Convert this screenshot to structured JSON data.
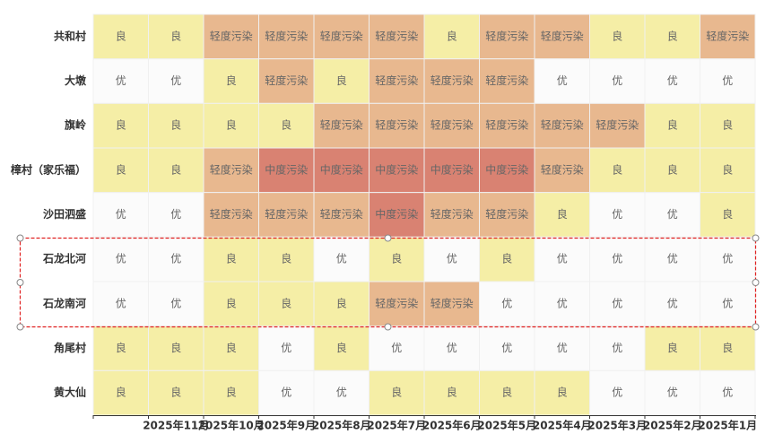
{
  "chart_data": {
    "type": "heatmap",
    "categories": [
      null,
      "2025年11月",
      "2025年10月",
      "2025年9月",
      "2025年8月",
      "2025年7月",
      "2025年6月",
      "2025年5月",
      "2025年4月",
      "2025年3月",
      "2025年2月",
      "2025年1月"
    ],
    "levels": [
      {
        "label": "优",
        "color": "#fbfbfb"
      },
      {
        "label": "良",
        "color": "#f5eea6"
      },
      {
        "label": "轻度污染",
        "color": "#e8b88f"
      },
      {
        "label": "中度污染",
        "color": "#d98272"
      }
    ],
    "series": [
      {
        "name": "共和村",
        "values": [
          "良",
          "良",
          "轻度污染",
          "轻度污染",
          "轻度污染",
          "轻度污染",
          "良",
          "轻度污染",
          "轻度污染",
          "良",
          "良",
          "轻度污染"
        ]
      },
      {
        "name": "大墩",
        "values": [
          "优",
          "优",
          "良",
          "轻度污染",
          "良",
          "轻度污染",
          "轻度污染",
          "轻度污染",
          "优",
          "优",
          "优",
          "优"
        ]
      },
      {
        "name": "旗岭",
        "values": [
          "良",
          "良",
          "良",
          "良",
          "轻度污染",
          "轻度污染",
          "轻度污染",
          "轻度污染",
          "轻度污染",
          "轻度污染",
          "良",
          "良"
        ]
      },
      {
        "name": "樟村（家乐福）",
        "values": [
          "良",
          "良",
          "轻度污染",
          "中度污染",
          "中度污染",
          "中度污染",
          "中度污染",
          "中度污染",
          "轻度污染",
          "良",
          "良",
          "良"
        ]
      },
      {
        "name": "沙田泗盛",
        "values": [
          "优",
          "优",
          "轻度污染",
          "轻度污染",
          "轻度污染",
          "中度污染",
          "轻度污染",
          "轻度污染",
          "良",
          "优",
          "优",
          "良"
        ]
      },
      {
        "name": "石龙北河",
        "values": [
          "优",
          "优",
          "良",
          "良",
          "优",
          "良",
          "优",
          "良",
          "优",
          "优",
          "优",
          "优"
        ]
      },
      {
        "name": "石龙南河",
        "values": [
          "优",
          "优",
          "良",
          "良",
          "良",
          "轻度污染",
          "轻度污染",
          "优",
          "优",
          "优",
          "优",
          "优"
        ]
      },
      {
        "name": "角尾村",
        "values": [
          "良",
          "良",
          "良",
          "优",
          "良",
          "优",
          "优",
          "优",
          "优",
          "优",
          "良",
          "良"
        ]
      },
      {
        "name": "黄大仙",
        "values": [
          "良",
          "良",
          "良",
          "优",
          "优",
          "良",
          "良",
          "良",
          "良",
          "优",
          "优",
          "优"
        ]
      }
    ]
  }
}
